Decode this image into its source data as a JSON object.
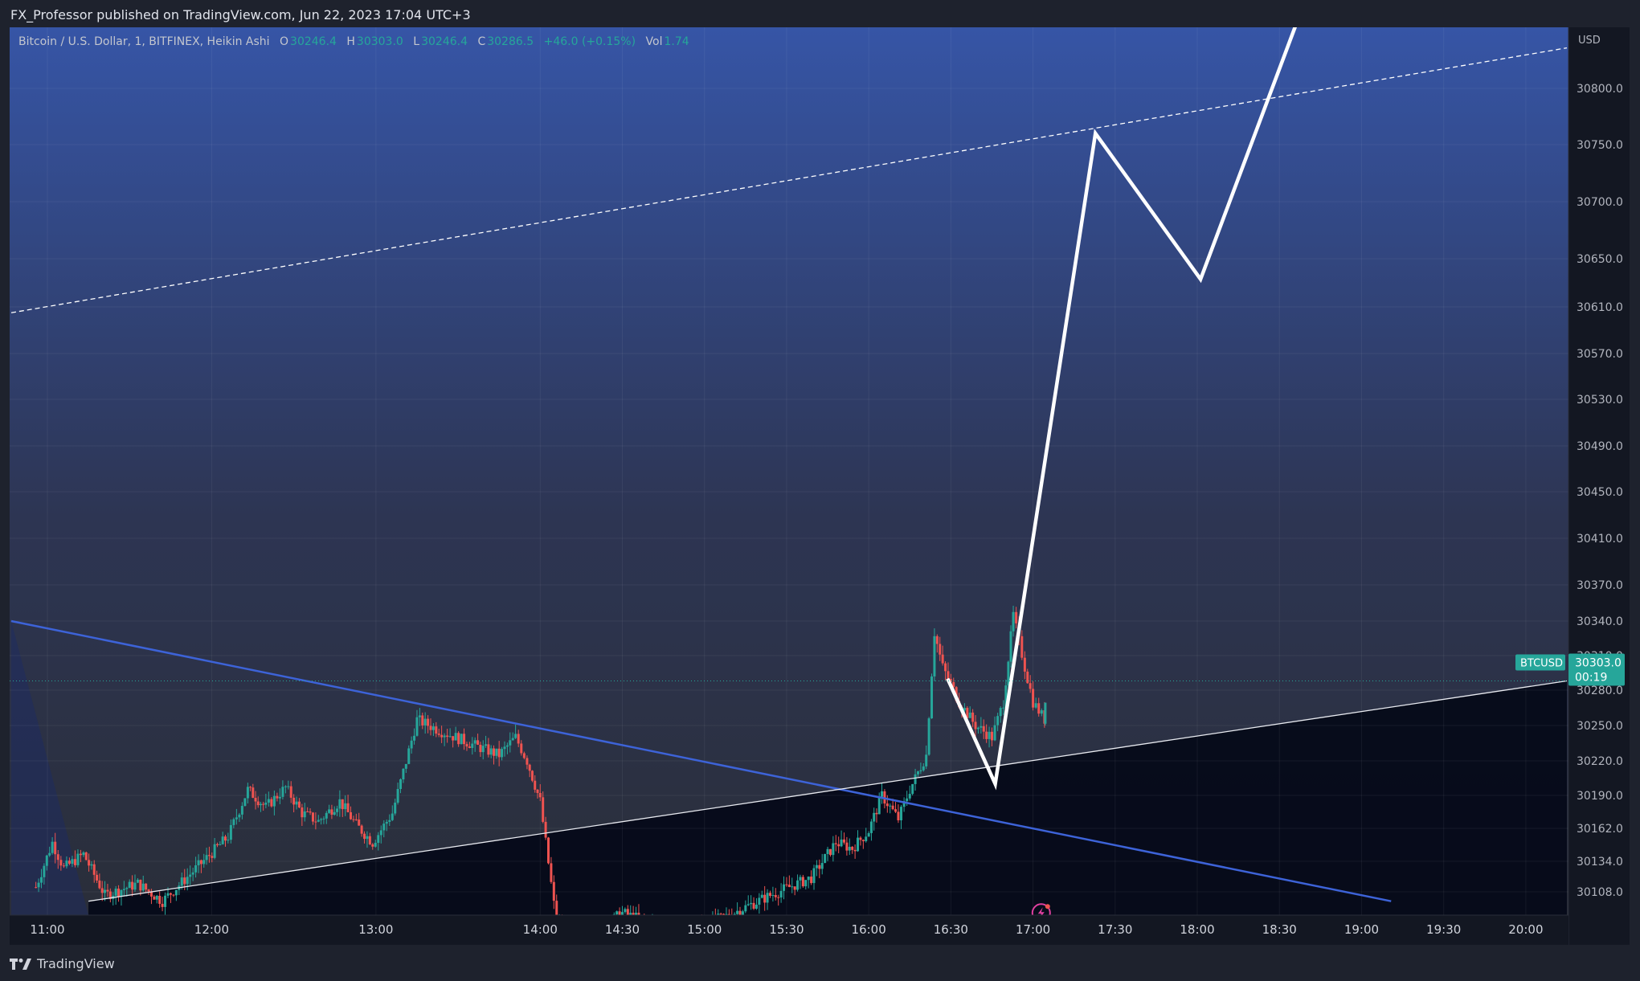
{
  "header": {
    "published": "FX_Professor published on TradingView.com, Jun 22, 2023 17:04 UTC+3"
  },
  "legend": {
    "symbol": "Bitcoin / U.S. Dollar, 1, BITFINEX, Heikin Ashi",
    "o_label": "O",
    "o_value": "30246.4",
    "h_label": "H",
    "h_value": "30303.0",
    "l_label": "L",
    "l_value": "30246.4",
    "c_label": "C",
    "c_value": "30286.5",
    "change": "+46.0 (+0.15%)",
    "vol_label": "Vol",
    "vol_value": "1.74"
  },
  "footer": {
    "brand": "TradingView"
  },
  "colors": {
    "up": "#26a69a",
    "down": "#ef5350",
    "accent_blue": "#2962ff",
    "trend_blue": "#3d63d8",
    "white": "#ffffff",
    "gradient_top": "#3655a6"
  },
  "chart_data": {
    "type": "candlestick",
    "currency": "USD",
    "y_ticks": [
      "30800.0",
      "30750.0",
      "30700.0",
      "30650.0",
      "30610.0",
      "30570.0",
      "30530.0",
      "30490.0",
      "30450.0",
      "30410.0",
      "30370.0",
      "30340.0",
      "30310.0",
      "30280.0",
      "30250.0",
      "30220.0",
      "30190.0",
      "30162.0",
      "30134.0",
      "30108.0"
    ],
    "x_ticks": [
      "11:00",
      "12:00",
      "13:00",
      "14:00",
      "14:30",
      "15:00",
      "15:30",
      "16:00",
      "16:30",
      "17:00",
      "17:30",
      "18:00",
      "18:30",
      "19:00",
      "19:30",
      "20:00"
    ],
    "last_price": {
      "symbol": "BTCUSD",
      "price": "30303.0",
      "countdown": "00:19"
    },
    "price_segments": [
      {
        "t": 10.93,
        "p": 30112
      },
      {
        "t": 11.03,
        "p": 30150
      },
      {
        "t": 11.1,
        "p": 30128
      },
      {
        "t": 11.22,
        "p": 30140
      },
      {
        "t": 11.35,
        "p": 30105
      },
      {
        "t": 11.55,
        "p": 30115
      },
      {
        "t": 11.7,
        "p": 30100
      },
      {
        "t": 11.92,
        "p": 30130
      },
      {
        "t": 12.1,
        "p": 30155
      },
      {
        "t": 12.22,
        "p": 30195
      },
      {
        "t": 12.33,
        "p": 30180
      },
      {
        "t": 12.45,
        "p": 30197
      },
      {
        "t": 12.55,
        "p": 30175
      },
      {
        "t": 12.65,
        "p": 30168
      },
      {
        "t": 12.78,
        "p": 30185
      },
      {
        "t": 12.88,
        "p": 30165
      },
      {
        "t": 12.98,
        "p": 30150
      },
      {
        "t": 13.1,
        "p": 30175
      },
      {
        "t": 13.25,
        "p": 30255
      },
      {
        "t": 13.4,
        "p": 30245
      },
      {
        "t": 13.52,
        "p": 30238
      },
      {
        "t": 13.62,
        "p": 30232
      },
      {
        "t": 13.75,
        "p": 30225
      },
      {
        "t": 13.85,
        "p": 30240
      },
      {
        "t": 13.92,
        "p": 30220
      },
      {
        "t": 14.0,
        "p": 30185
      },
      {
        "t": 14.1,
        "p": 30080
      },
      {
        "t": 14.3,
        "p": 30070
      },
      {
        "t": 14.5,
        "p": 30090
      },
      {
        "t": 14.8,
        "p": 30075
      },
      {
        "t": 15.1,
        "p": 30085
      },
      {
        "t": 15.4,
        "p": 30105
      },
      {
        "t": 15.65,
        "p": 30120
      },
      {
        "t": 15.8,
        "p": 30150
      },
      {
        "t": 15.9,
        "p": 30145
      },
      {
        "t": 16.0,
        "p": 30160
      },
      {
        "t": 16.08,
        "p": 30190
      },
      {
        "t": 16.18,
        "p": 30170
      },
      {
        "t": 16.25,
        "p": 30195
      },
      {
        "t": 16.35,
        "p": 30225
      },
      {
        "t": 16.4,
        "p": 30330
      },
      {
        "t": 16.45,
        "p": 30300
      },
      {
        "t": 16.55,
        "p": 30270
      },
      {
        "t": 16.65,
        "p": 30250
      },
      {
        "t": 16.75,
        "p": 30240
      },
      {
        "t": 16.82,
        "p": 30270
      },
      {
        "t": 16.88,
        "p": 30345
      },
      {
        "t": 16.95,
        "p": 30300
      },
      {
        "t": 17.0,
        "p": 30270
      },
      {
        "t": 17.07,
        "p": 30255
      },
      {
        "t": 17.08,
        "p": 30286
      }
    ],
    "drawings": {
      "descending_blue_line": [
        {
          "t": 10.78,
          "p": 30340
        },
        {
          "t": 19.18,
          "p": 30100
        }
      ],
      "ascending_white_line": [
        {
          "t": 11.25,
          "p": 30100
        },
        {
          "t": 20.25,
          "p": 30288
        }
      ],
      "dashed_white_line": [
        {
          "t": 10.78,
          "p": 30605
        },
        {
          "t": 20.25,
          "p": 30836
        }
      ],
      "projection_path": [
        {
          "t": 16.48,
          "p": 30290
        },
        {
          "t": 16.77,
          "p": 30200
        },
        {
          "t": 17.38,
          "p": 30760
        },
        {
          "t": 18.02,
          "p": 30633
        },
        {
          "t": 18.63,
          "p": 30868
        }
      ]
    }
  }
}
